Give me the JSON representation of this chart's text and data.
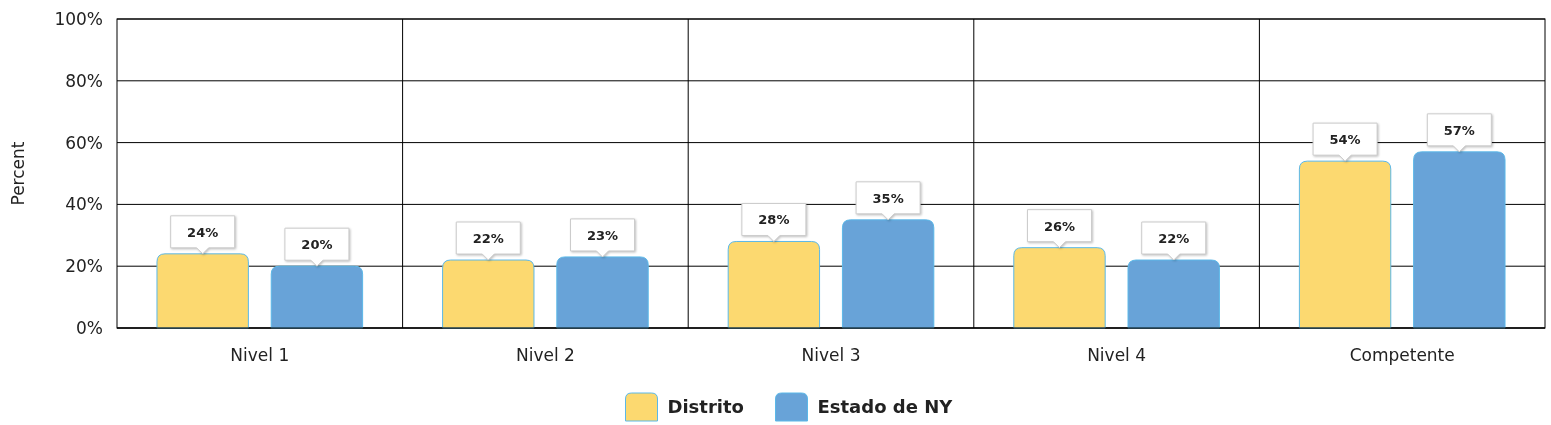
{
  "chart_data": {
    "type": "bar",
    "ylabel": "Percent",
    "categories": [
      "Nivel 1",
      "Nivel 2",
      "Nivel 3",
      "Nivel 4",
      "Competente"
    ],
    "series": [
      {
        "name": "Distrito",
        "color": "#fcd970",
        "values": [
          24,
          22,
          28,
          26,
          54
        ],
        "value_labels": [
          "24%",
          "22%",
          "28%",
          "26%",
          "54%"
        ]
      },
      {
        "name": "Estado de NY",
        "color": "#68a3d8",
        "values": [
          20,
          23,
          35,
          22,
          57
        ],
        "value_labels": [
          "20%",
          "23%",
          "35%",
          "22%",
          "57%"
        ]
      }
    ],
    "ylim": [
      0,
      100
    ],
    "yticks": [
      {
        "value": 0,
        "label": "0%"
      },
      {
        "value": 20,
        "label": "20%"
      },
      {
        "value": 40,
        "label": "40%"
      },
      {
        "value": 60,
        "label": "60%"
      },
      {
        "value": 80,
        "label": "80%"
      },
      {
        "value": 100,
        "label": "100%"
      }
    ],
    "grid": true,
    "legend": "bottom"
  }
}
